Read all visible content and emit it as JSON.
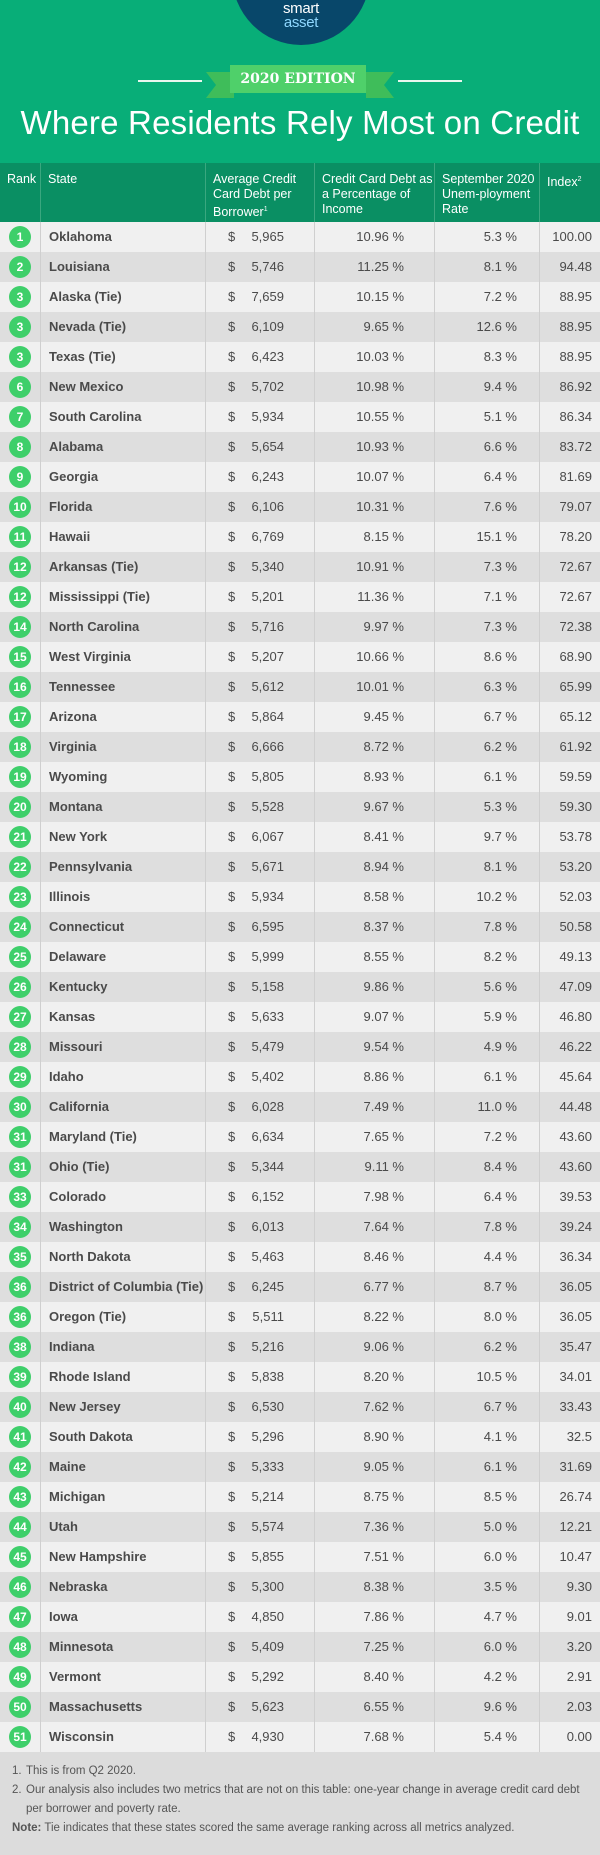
{
  "brand": {
    "logo_main": "smart",
    "logo_accent": "asset",
    "logo_tm": "™"
  },
  "edition": "2020 EDITION",
  "title": "Where Residents Rely Most on Credit",
  "colors": {
    "banner": "#08ae78",
    "header": "#0a8f63",
    "rank_badge": "#3ecf6a",
    "logo_bg": "#08476a"
  },
  "headers": {
    "rank": "Rank",
    "state": "State",
    "debt": "Average Credit Card Debt per Borrower",
    "debt_sup": "1",
    "pct": "Credit Card Debt as a Percentage of Income",
    "unemp": "September 2020 Unem-ployment Rate",
    "index": "Index",
    "index_sup": "2"
  },
  "rows": [
    [
      "1",
      "Oklahoma",
      "5,965",
      "10.96 %",
      "5.3 %",
      "100.00"
    ],
    [
      "2",
      "Louisiana",
      "5,746",
      "11.25 %",
      "8.1 %",
      "94.48"
    ],
    [
      "3",
      "Alaska (Tie)",
      "7,659",
      "10.15 %",
      "7.2 %",
      "88.95"
    ],
    [
      "3",
      "Nevada (Tie)",
      "6,109",
      "9.65 %",
      "12.6 %",
      "88.95"
    ],
    [
      "3",
      "Texas (Tie)",
      "6,423",
      "10.03 %",
      "8.3 %",
      "88.95"
    ],
    [
      "6",
      "New Mexico",
      "5,702",
      "10.98 %",
      "9.4 %",
      "86.92"
    ],
    [
      "7",
      "South Carolina",
      "5,934",
      "10.55 %",
      "5.1 %",
      "86.34"
    ],
    [
      "8",
      "Alabama",
      "5,654",
      "10.93 %",
      "6.6 %",
      "83.72"
    ],
    [
      "9",
      "Georgia",
      "6,243",
      "10.07 %",
      "6.4 %",
      "81.69"
    ],
    [
      "10",
      "Florida",
      "6,106",
      "10.31 %",
      "7.6 %",
      "79.07"
    ],
    [
      "11",
      "Hawaii",
      "6,769",
      "8.15 %",
      "15.1 %",
      "78.20"
    ],
    [
      "12",
      "Arkansas (Tie)",
      "5,340",
      "10.91 %",
      "7.3 %",
      "72.67"
    ],
    [
      "12",
      "Mississippi (Tie)",
      "5,201",
      "11.36 %",
      "7.1 %",
      "72.67"
    ],
    [
      "14",
      "North Carolina",
      "5,716",
      "9.97 %",
      "7.3 %",
      "72.38"
    ],
    [
      "15",
      "West Virginia",
      "5,207",
      "10.66 %",
      "8.6 %",
      "68.90"
    ],
    [
      "16",
      "Tennessee",
      "5,612",
      "10.01 %",
      "6.3 %",
      "65.99"
    ],
    [
      "17",
      "Arizona",
      "5,864",
      "9.45 %",
      "6.7 %",
      "65.12"
    ],
    [
      "18",
      "Virginia",
      "6,666",
      "8.72 %",
      "6.2 %",
      "61.92"
    ],
    [
      "19",
      "Wyoming",
      "5,805",
      "8.93 %",
      "6.1 %",
      "59.59"
    ],
    [
      "20",
      "Montana",
      "5,528",
      "9.67 %",
      "5.3 %",
      "59.30"
    ],
    [
      "21",
      "New York",
      "6,067",
      "8.41 %",
      "9.7 %",
      "53.78"
    ],
    [
      "22",
      "Pennsylvania",
      "5,671",
      "8.94 %",
      "8.1 %",
      "53.20"
    ],
    [
      "23",
      "Illinois",
      "5,934",
      "8.58 %",
      "10.2 %",
      "52.03"
    ],
    [
      "24",
      "Connecticut",
      "6,595",
      "8.37 %",
      "7.8 %",
      "50.58"
    ],
    [
      "25",
      "Delaware",
      "5,999",
      "8.55 %",
      "8.2 %",
      "49.13"
    ],
    [
      "26",
      "Kentucky",
      "5,158",
      "9.86 %",
      "5.6 %",
      "47.09"
    ],
    [
      "27",
      "Kansas",
      "5,633",
      "9.07 %",
      "5.9 %",
      "46.80"
    ],
    [
      "28",
      "Missouri",
      "5,479",
      "9.54 %",
      "4.9 %",
      "46.22"
    ],
    [
      "29",
      "Idaho",
      "5,402",
      "8.86 %",
      "6.1 %",
      "45.64"
    ],
    [
      "30",
      "California",
      "6,028",
      "7.49 %",
      "11.0 %",
      "44.48"
    ],
    [
      "31",
      "Maryland (Tie)",
      "6,634",
      "7.65 %",
      "7.2 %",
      "43.60"
    ],
    [
      "31",
      "Ohio (Tie)",
      "5,344",
      "9.11 %",
      "8.4 %",
      "43.60"
    ],
    [
      "33",
      "Colorado",
      "6,152",
      "7.98 %",
      "6.4 %",
      "39.53"
    ],
    [
      "34",
      "Washington",
      "6,013",
      "7.64 %",
      "7.8 %",
      "39.24"
    ],
    [
      "35",
      "North Dakota",
      "5,463",
      "8.46 %",
      "4.4 %",
      "36.34"
    ],
    [
      "36",
      "District of Columbia (Tie)",
      "6,245",
      "6.77 %",
      "8.7 %",
      "36.05"
    ],
    [
      "36",
      "Oregon (Tie)",
      "5,511",
      "8.22 %",
      "8.0 %",
      "36.05"
    ],
    [
      "38",
      "Indiana",
      "5,216",
      "9.06 %",
      "6.2 %",
      "35.47"
    ],
    [
      "39",
      "Rhode Island",
      "5,838",
      "8.20 %",
      "10.5 %",
      "34.01"
    ],
    [
      "40",
      "New Jersey",
      "6,530",
      "7.62 %",
      "6.7 %",
      "33.43"
    ],
    [
      "41",
      "South Dakota",
      "5,296",
      "8.90 %",
      "4.1 %",
      "32.5"
    ],
    [
      "42",
      "Maine",
      "5,333",
      "9.05 %",
      "6.1 %",
      "31.69"
    ],
    [
      "43",
      "Michigan",
      "5,214",
      "8.75 %",
      "8.5 %",
      "26.74"
    ],
    [
      "44",
      "Utah",
      "5,574",
      "7.36 %",
      "5.0 %",
      "12.21"
    ],
    [
      "45",
      "New Hampshire",
      "5,855",
      "7.51 %",
      "6.0 %",
      "10.47"
    ],
    [
      "46",
      "Nebraska",
      "5,300",
      "8.38 %",
      "3.5 %",
      "9.30"
    ],
    [
      "47",
      "Iowa",
      "4,850",
      "7.86 %",
      "4.7 %",
      "9.01"
    ],
    [
      "48",
      "Minnesota",
      "5,409",
      "7.25 %",
      "6.0 %",
      "3.20"
    ],
    [
      "49",
      "Vermont",
      "5,292",
      "8.40 %",
      "4.2 %",
      "2.91"
    ],
    [
      "50",
      "Massachusetts",
      "5,623",
      "6.55 %",
      "9.6 %",
      "2.03"
    ],
    [
      "51",
      "Wisconsin",
      "4,930",
      "7.68 %",
      "5.4 %",
      "0.00"
    ]
  ],
  "currency": "$",
  "footnotes": {
    "n1": "1.",
    "t1": "This is from Q2 2020.",
    "n2": "2.",
    "t2": "Our analysis also includes two metrics that are not on this table: one-year change in average credit card debt per borrower and poverty rate.",
    "note_label": "Note:",
    "note": " Tie indicates that these states scored the same average ranking across all metrics analyzed."
  }
}
